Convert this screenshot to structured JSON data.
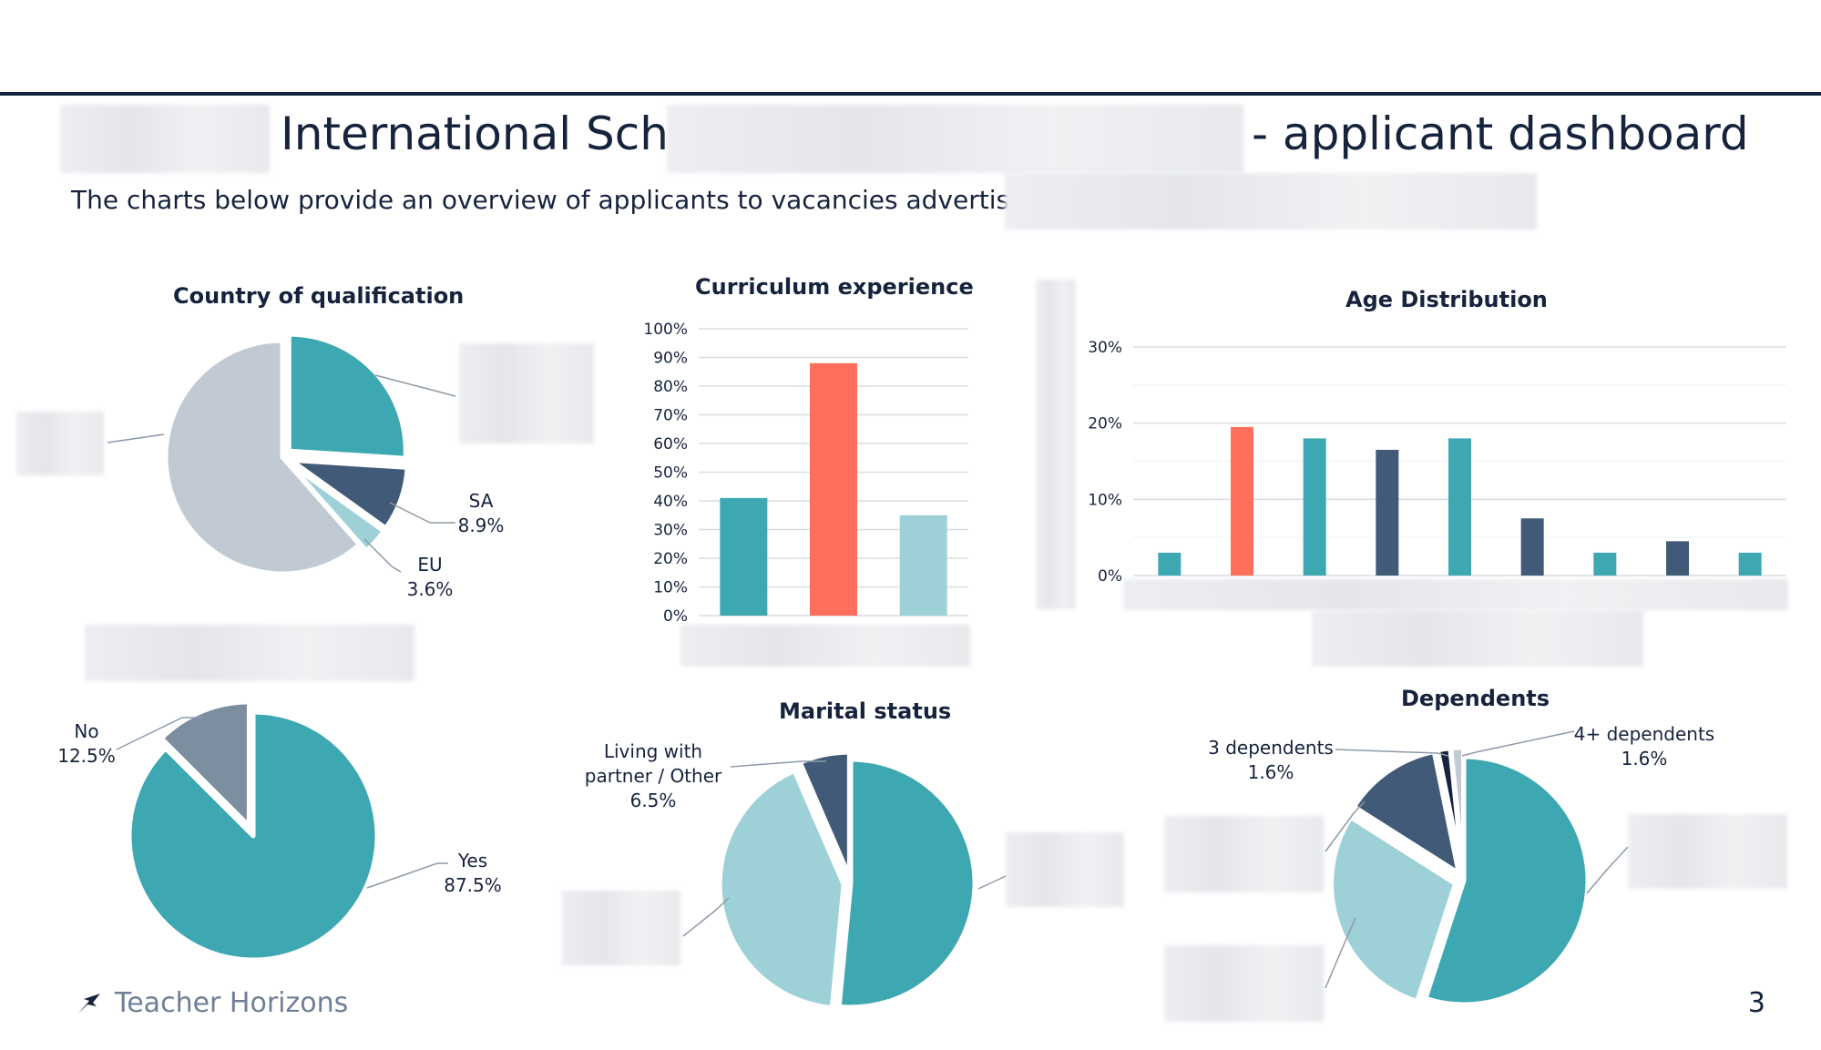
{
  "header": {
    "title_part1": "International School",
    "title_part2": "- applicant dashboard",
    "subtitle": "The charts below provide an overview of applicants to vacancies advertised for"
  },
  "footer": {
    "brand": "Teacher Horizons",
    "page_number": "3"
  },
  "colors": {
    "teal": "#3ea8b2",
    "navy": "#415a78",
    "light_teal": "#9dd1d7",
    "grey": "#c1cad3",
    "slate": "#7d8ea1",
    "coral": "#ff6f5c",
    "dark": "#16233d"
  },
  "chart_data": [
    {
      "id": "country",
      "type": "pie",
      "title": "Country of qualification",
      "slices": [
        {
          "label": "",
          "value": 26.0,
          "color": "#3ea8b2"
        },
        {
          "label": "SA",
          "value": 8.9,
          "display": "8.9%",
          "color": "#415a78"
        },
        {
          "label": "EU",
          "value": 3.6,
          "display": "3.6%",
          "color": "#9dd1d7"
        },
        {
          "label": "",
          "value": 61.5,
          "color": "#c1cad3"
        }
      ]
    },
    {
      "id": "curriculum",
      "type": "bar",
      "title": "Curriculum experience",
      "y_ticks": [
        "0%",
        "10%",
        "20%",
        "30%",
        "40%",
        "50%",
        "60%",
        "70%",
        "80%",
        "90%",
        "100%"
      ],
      "ylim": [
        0,
        100
      ],
      "values": [
        41,
        88,
        35
      ],
      "colors": [
        "#3ea8b2",
        "#ff6f5c",
        "#9dd1d7"
      ]
    },
    {
      "id": "age",
      "type": "bar",
      "title": "Age Distribution",
      "y_ticks": [
        "0%",
        "10%",
        "20%",
        "30%"
      ],
      "ylim": [
        0,
        30
      ],
      "values": [
        3,
        19.5,
        18,
        16.5,
        18,
        7.5,
        3,
        4.5,
        3
      ],
      "colors": [
        "#3ea8b2",
        "#ff6f5c",
        "#3ea8b2",
        "#415a78",
        "#3ea8b2",
        "#415a78",
        "#3ea8b2",
        "#415a78",
        "#3ea8b2"
      ]
    },
    {
      "id": "yesno",
      "type": "pie",
      "slices": [
        {
          "label": "Yes",
          "value": 87.5,
          "display": "87.5%",
          "color": "#3ea8b2"
        },
        {
          "label": "No",
          "value": 12.5,
          "display": "12.5%",
          "color": "#7d8ea1"
        }
      ]
    },
    {
      "id": "marital",
      "type": "pie",
      "title": "Marital status",
      "slices": [
        {
          "label": "",
          "value": 51.5,
          "color": "#3ea8b2"
        },
        {
          "label": "",
          "value": 42.0,
          "color": "#9dd1d7"
        },
        {
          "label_lines": [
            "Living with",
            "partner / Other"
          ],
          "value": 6.5,
          "display": "6.5%",
          "color": "#415a78"
        }
      ]
    },
    {
      "id": "dependents",
      "type": "pie",
      "title": "Dependents",
      "slices": [
        {
          "label": "",
          "value": 55.0,
          "color": "#3ea8b2"
        },
        {
          "label": "",
          "value": 29.0,
          "color": "#9dd1d7"
        },
        {
          "label": "",
          "value": 12.8,
          "color": "#415a78"
        },
        {
          "label": "3 dependents",
          "value": 1.6,
          "display": "1.6%",
          "color": "#16233d"
        },
        {
          "label": "4+ dependents",
          "value": 1.6,
          "display": "1.6%",
          "color": "#c1cad3"
        }
      ]
    }
  ]
}
